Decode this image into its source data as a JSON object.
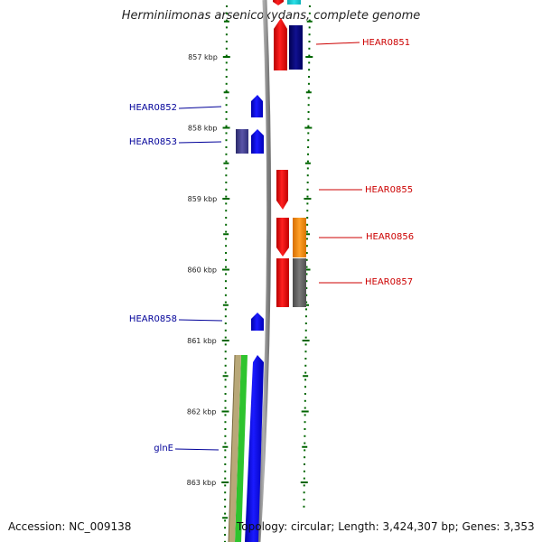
{
  "title": "Herminiimonas arsenicoxydans, complete genome",
  "footer": {
    "accession": "Accession: NC_009138",
    "summary": "Topology: circular; Length: 3,424,307 bp; Genes: 3,353"
  },
  "colors": {
    "forward_gene": "#ff0000",
    "reverse_gene": "#0000ff",
    "forward_label": "#cc0000",
    "reverse_label": "#000099",
    "backbone": "#8a8a8a",
    "tick": "#006600"
  },
  "scale": {
    "unit": "kbp",
    "ticks": [
      {
        "value": 857,
        "label": "857 kbp"
      },
      {
        "value": 858,
        "label": "858 kbp"
      },
      {
        "value": 859,
        "label": "859 kbp"
      },
      {
        "value": 860,
        "label": "860 kbp"
      },
      {
        "value": 861,
        "label": "861 kbp"
      },
      {
        "value": 862,
        "label": "862 kbp"
      },
      {
        "value": 863,
        "label": "863 kbp"
      }
    ]
  },
  "gene_labels": [
    {
      "name": "HEAR0851",
      "strand": "forward"
    },
    {
      "name": "HEAR0852",
      "strand": "reverse"
    },
    {
      "name": "HEAR0853",
      "strand": "reverse"
    },
    {
      "name": "HEAR0855",
      "strand": "forward"
    },
    {
      "name": "HEAR0856",
      "strand": "forward"
    },
    {
      "name": "HEAR0857",
      "strand": "forward"
    },
    {
      "name": "HEAR0858",
      "strand": "reverse"
    },
    {
      "name": "glnE",
      "strand": "reverse"
    }
  ]
}
